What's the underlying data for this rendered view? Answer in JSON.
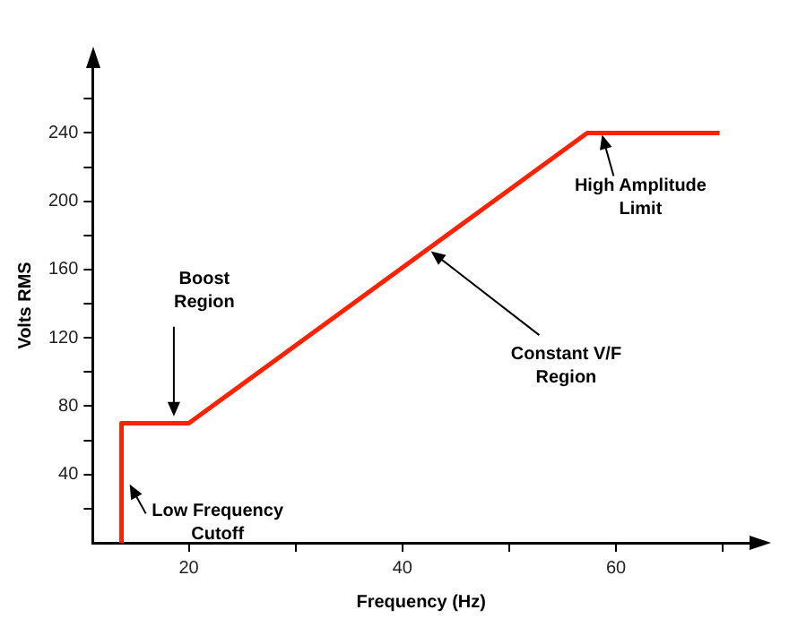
{
  "chart_data": {
    "type": "line",
    "xlabel": "Frequency (Hz)",
    "ylabel": "Volts RMS",
    "x": [
      13.7,
      13.7,
      20,
      57.3,
      69.7
    ],
    "values": [
      0,
      70,
      70,
      240,
      240
    ],
    "color": "#ff2200",
    "xlim": [
      11,
      72.5
    ],
    "ylim": [
      0,
      278
    ],
    "xticks": [
      20,
      {
        "value": 30,
        "label": null
      },
      40,
      {
        "value": 50,
        "label": null
      },
      60,
      {
        "value": 70,
        "label": null
      }
    ],
    "yticks": [
      {
        "value": 20,
        "label": null
      },
      40,
      {
        "value": 60,
        "label": null
      },
      80,
      {
        "value": 100,
        "label": null
      },
      120,
      {
        "value": 140,
        "label": null
      },
      160,
      {
        "value": 180,
        "label": null
      },
      200,
      {
        "value": 220,
        "label": null
      },
      240,
      {
        "value": 260,
        "label": null
      }
    ],
    "grid": false,
    "legend": false,
    "marker": "none",
    "line_style": "solid",
    "annotations": [
      {
        "text": "Boost\nRegion",
        "x": 18.6,
        "y": 72
      },
      {
        "text": "Low Frequency\nCutoff",
        "x": 14.3,
        "y": 36
      },
      {
        "text": "Constant V/F\nRegion",
        "x": 42.4,
        "y": 172
      },
      {
        "text": "High Amplitude\nLimit",
        "x": 58.6,
        "y": 241
      }
    ]
  }
}
